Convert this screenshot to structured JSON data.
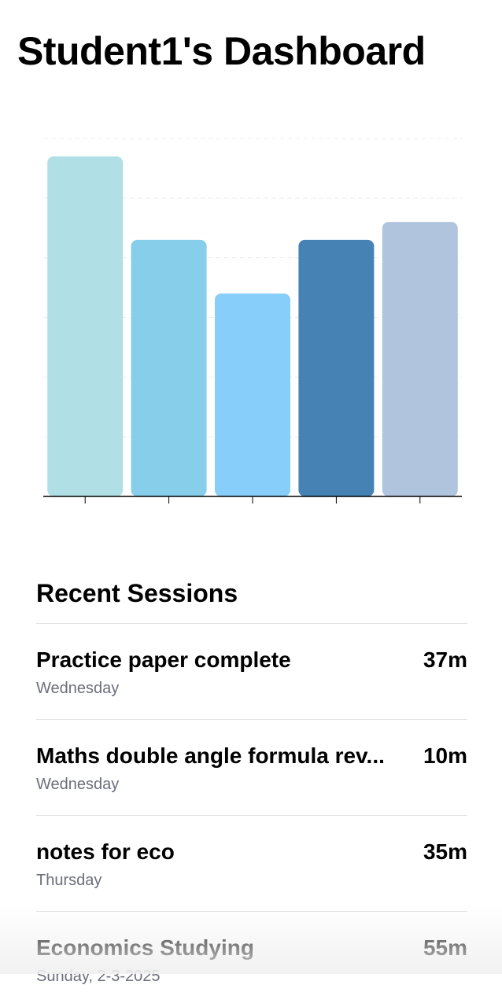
{
  "header": {
    "title": "Student1's Dashboard"
  },
  "chart_data": {
    "type": "bar",
    "categories": [
      null,
      null,
      null,
      null,
      null
    ],
    "values": [
      5.7,
      4.3,
      3.4,
      4.3,
      4.6
    ],
    "colors": [
      "#b0e0e6",
      "#87ceeb",
      "#87cefa",
      "#4682b4",
      "#b0c4de"
    ],
    "ylim": [
      0,
      6
    ],
    "yticks": [
      0,
      1,
      2,
      3,
      4,
      5,
      6
    ],
    "grid": true
  },
  "sessions": {
    "title": "Recent Sessions",
    "items": [
      {
        "name": "Practice paper complete",
        "duration": "37m",
        "day": "Wednesday"
      },
      {
        "name": "Maths double angle formula rev...",
        "duration": "10m",
        "day": "Wednesday"
      },
      {
        "name": "notes for eco",
        "duration": "35m",
        "day": "Thursday"
      },
      {
        "name": "Economics Studying",
        "duration": "55m",
        "day": "Sunday, 2-3-2025"
      }
    ]
  }
}
